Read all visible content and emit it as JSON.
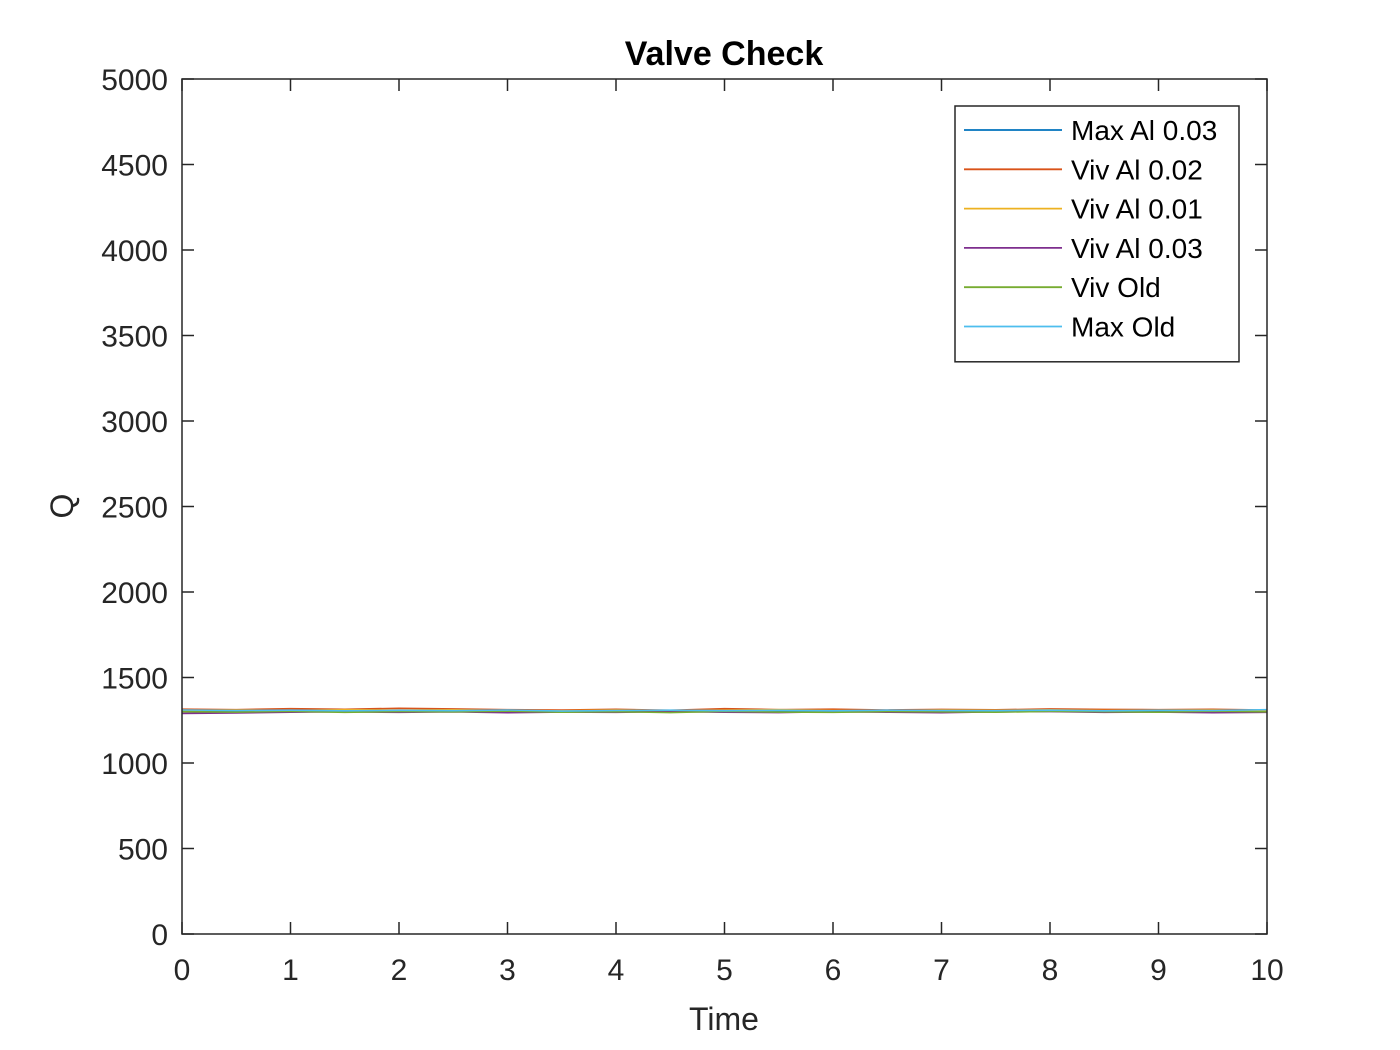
{
  "chart_data": {
    "type": "line",
    "title": "Valve Check",
    "xlabel": "Time",
    "ylabel": "Q",
    "xlim": [
      0,
      10
    ],
    "ylim": [
      0,
      5000
    ],
    "xticks": [
      "0",
      "1",
      "2",
      "3",
      "4",
      "5",
      "6",
      "7",
      "8",
      "9",
      "10"
    ],
    "yticks": [
      "0",
      "500",
      "1000",
      "1500",
      "2000",
      "2500",
      "3000",
      "3500",
      "4000",
      "4500",
      "5000"
    ],
    "grid": false,
    "legend_position": "top-right",
    "x": [
      0,
      0.5,
      1,
      1.5,
      2,
      2.5,
      3,
      3.5,
      4,
      4.5,
      5,
      5.5,
      6,
      6.5,
      7,
      7.5,
      8,
      8.5,
      9,
      9.5,
      10
    ],
    "series": [
      {
        "name": "Max Al 0.03",
        "color": "#0072BD",
        "values": [
          1305,
          1302,
          1300,
          1306,
          1303,
          1301,
          1299,
          1304,
          1302,
          1300,
          1303,
          1305,
          1301,
          1302,
          1304,
          1300,
          1303,
          1306,
          1302,
          1301,
          1300
        ]
      },
      {
        "name": "Viv Al 0.02",
        "color": "#D95319",
        "values": [
          1315,
          1312,
          1318,
          1314,
          1320,
          1316,
          1312,
          1310,
          1314,
          1308,
          1318,
          1312,
          1315,
          1310,
          1313,
          1311,
          1316,
          1313,
          1312,
          1314,
          1310
        ]
      },
      {
        "name": "Viv Al 0.01",
        "color": "#EDB120",
        "values": [
          1308,
          1310,
          1306,
          1312,
          1309,
          1311,
          1307,
          1305,
          1310,
          1306,
          1309,
          1312,
          1307,
          1306,
          1310,
          1308,
          1311,
          1307,
          1309,
          1310,
          1306
        ]
      },
      {
        "name": "Viv Al 0.03",
        "color": "#7E2F8E",
        "values": [
          1290,
          1293,
          1297,
          1300,
          1296,
          1299,
          1294,
          1298,
          1296,
          1301,
          1297,
          1295,
          1300,
          1297,
          1294,
          1299,
          1301,
          1296,
          1298,
          1294,
          1296
        ]
      },
      {
        "name": "Viv Old",
        "color": "#77AC30",
        "values": [
          1300,
          1298,
          1302,
          1296,
          1301,
          1299,
          1303,
          1297,
          1300,
          1295,
          1302,
          1298,
          1296,
          1301,
          1299,
          1297,
          1302,
          1300,
          1297,
          1303,
          1299
        ]
      },
      {
        "name": "Max Old",
        "color": "#4DBEEE",
        "values": [
          1310,
          1307,
          1309,
          1305,
          1308,
          1306,
          1310,
          1304,
          1307,
          1309,
          1306,
          1308,
          1305,
          1309,
          1307,
          1306,
          1309,
          1305,
          1308,
          1307,
          1312
        ]
      }
    ]
  }
}
